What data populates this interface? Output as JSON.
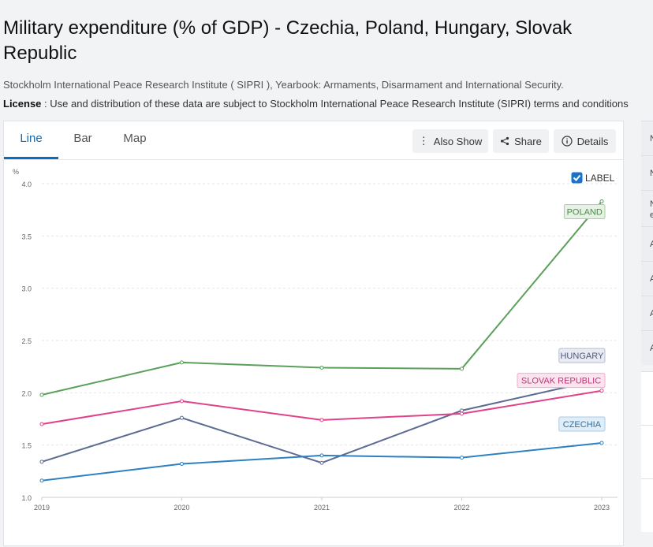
{
  "page": {
    "title": "Military expenditure (% of GDP) - Czechia, Poland, Hungary, Slovak Republic",
    "source": "Stockholm International Peace Research Institute ( SIPRI ), Yearbook: Armaments, Disarmament and International Security.",
    "license_label": "License",
    "license_text": " : Use and distribution of these data are subject to Stockholm International Peace Research Institute (SIPRI) terms and conditions"
  },
  "tabs": [
    {
      "label": "Line",
      "active": true
    },
    {
      "label": "Bar",
      "active": false
    },
    {
      "label": "Map",
      "active": false
    }
  ],
  "toolbar": {
    "also_show": "Also Show",
    "share": "Share",
    "details": "Details"
  },
  "label_toggle": {
    "label": "LABEL",
    "checked": true
  },
  "right_panel": {
    "letters": [
      "N",
      "N",
      "N",
      "e",
      "A",
      "A",
      "A",
      "A"
    ]
  },
  "chart_data": {
    "type": "line",
    "ylabel": "%",
    "xlabel": "",
    "x": [
      "2019",
      "2020",
      "2021",
      "2022",
      "2023"
    ],
    "ylim": [
      1.0,
      4.0
    ],
    "yticks": [
      "1.0",
      "1.5",
      "2.0",
      "2.5",
      "3.0",
      "3.5",
      "4.0"
    ],
    "grid": true,
    "series": [
      {
        "name": "POLAND",
        "color": "#5aa05a",
        "values": [
          1.98,
          2.29,
          2.24,
          2.23,
          3.83
        ]
      },
      {
        "name": "HUNGARY",
        "color": "#5c6b93",
        "values": [
          1.34,
          1.76,
          1.33,
          1.83,
          2.13
        ]
      },
      {
        "name": "SLOVAK REPUBLIC",
        "color": "#e0428a",
        "values": [
          1.7,
          1.92,
          1.74,
          1.8,
          2.02
        ]
      },
      {
        "name": "CZECHIA",
        "color": "#2e80c0",
        "values": [
          1.16,
          1.32,
          1.4,
          1.38,
          1.52
        ]
      }
    ]
  }
}
